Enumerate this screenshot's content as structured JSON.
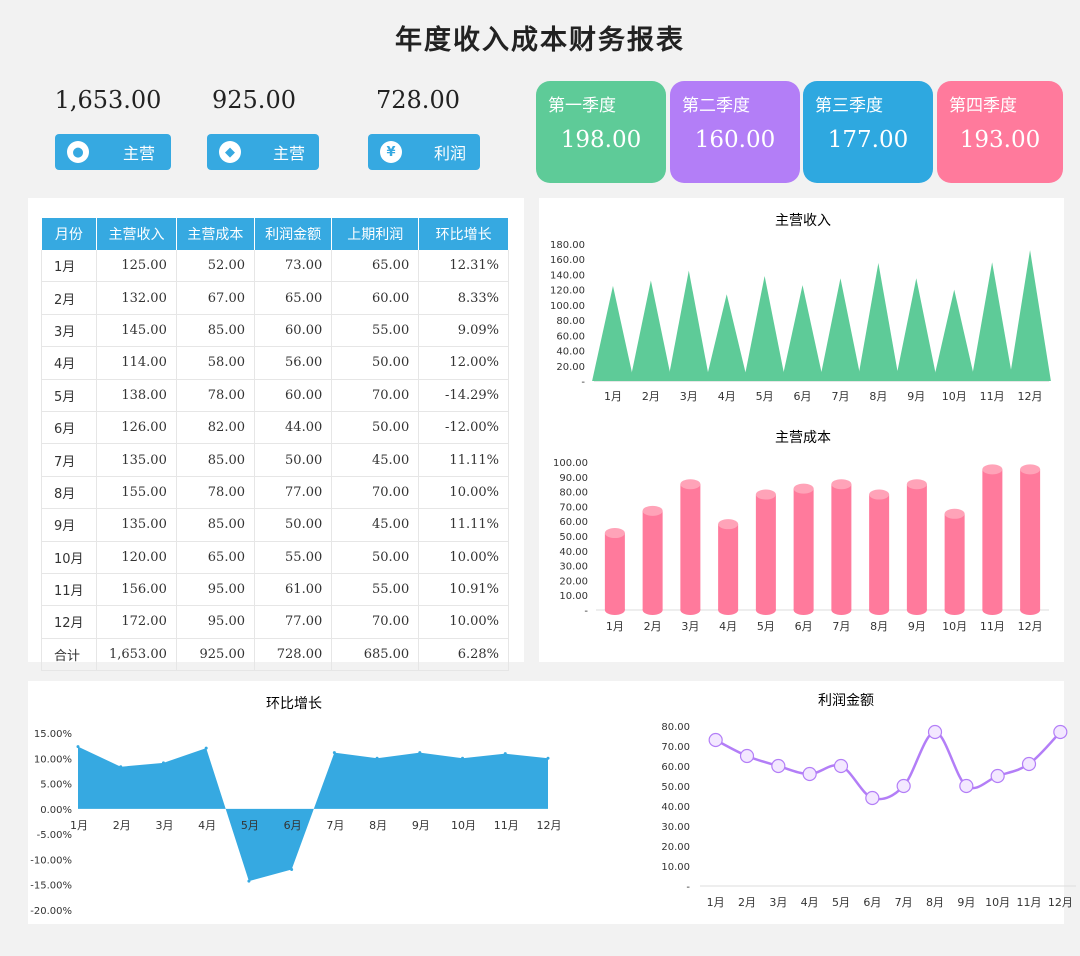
{
  "page_title": "年度收入成本财务报表",
  "kpis": [
    {
      "value": "1,653.00",
      "label": "主营",
      "icon": "piggy-bank-icon"
    },
    {
      "value": "925.00",
      "label": "主营",
      "icon": "tag-icon"
    },
    {
      "value": "728.00",
      "label": "利润",
      "icon": "coin-icon"
    }
  ],
  "quarters": [
    {
      "name": "第一季度",
      "value": "198.00",
      "color": "#5ecb98"
    },
    {
      "name": "第二季度",
      "value": "160.00",
      "color": "#b37ef7"
    },
    {
      "name": "第三季度",
      "value": "177.00",
      "color": "#2ea8e0"
    },
    {
      "name": "第四季度",
      "value": "193.00",
      "color": "#ff7a9c"
    }
  ],
  "table": {
    "headers": [
      "月份",
      "主营收入",
      "主营成本",
      "利润金额",
      "上期利润",
      "环比增长"
    ],
    "rows": [
      [
        "1月",
        "125.00",
        "52.00",
        "73.00",
        "65.00",
        "12.31%"
      ],
      [
        "2月",
        "132.00",
        "67.00",
        "65.00",
        "60.00",
        "8.33%"
      ],
      [
        "3月",
        "145.00",
        "85.00",
        "60.00",
        "55.00",
        "9.09%"
      ],
      [
        "4月",
        "114.00",
        "58.00",
        "56.00",
        "50.00",
        "12.00%"
      ],
      [
        "5月",
        "138.00",
        "78.00",
        "60.00",
        "70.00",
        "-14.29%"
      ],
      [
        "6月",
        "126.00",
        "82.00",
        "44.00",
        "50.00",
        "-12.00%"
      ],
      [
        "7月",
        "135.00",
        "85.00",
        "50.00",
        "45.00",
        "11.11%"
      ],
      [
        "8月",
        "155.00",
        "78.00",
        "77.00",
        "70.00",
        "10.00%"
      ],
      [
        "9月",
        "135.00",
        "85.00",
        "50.00",
        "45.00",
        "11.11%"
      ],
      [
        "10月",
        "120.00",
        "65.00",
        "55.00",
        "50.00",
        "10.00%"
      ],
      [
        "11月",
        "156.00",
        "95.00",
        "61.00",
        "55.00",
        "10.91%"
      ],
      [
        "12月",
        "172.00",
        "95.00",
        "77.00",
        "70.00",
        "10.00%"
      ]
    ],
    "total": [
      "合计",
      "1,653.00",
      "925.00",
      "728.00",
      "685.00",
      "6.28%"
    ]
  },
  "chart_data": [
    {
      "id": "revenue",
      "type": "bar",
      "title": "主营收入",
      "categories": [
        "1月",
        "2月",
        "3月",
        "4月",
        "5月",
        "6月",
        "7月",
        "8月",
        "9月",
        "10月",
        "11月",
        "12月"
      ],
      "values": [
        125,
        132,
        145,
        114,
        138,
        126,
        135,
        155,
        135,
        120,
        156,
        172
      ],
      "ylim": [
        0,
        180
      ],
      "yticks": [
        "-",
        "20.00",
        "40.00",
        "60.00",
        "80.00",
        "100.00",
        "120.00",
        "140.00",
        "160.00",
        "180.00"
      ],
      "color": "#5ecb98",
      "shape": "triangle",
      "grid": false
    },
    {
      "id": "cost",
      "type": "bar",
      "title": "主营成本",
      "categories": [
        "1月",
        "2月",
        "3月",
        "4月",
        "5月",
        "6月",
        "7月",
        "8月",
        "9月",
        "10月",
        "11月",
        "12月"
      ],
      "values": [
        52,
        67,
        85,
        58,
        78,
        82,
        85,
        78,
        85,
        65,
        95,
        95
      ],
      "ylim": [
        0,
        100
      ],
      "yticks": [
        "-",
        "10.00",
        "20.00",
        "30.00",
        "40.00",
        "50.00",
        "60.00",
        "70.00",
        "80.00",
        "90.00",
        "100.00"
      ],
      "color": "#ff7a9c",
      "shape": "cylinder",
      "grid": false
    },
    {
      "id": "growth",
      "type": "area",
      "title": "环比增长",
      "categories": [
        "1月",
        "2月",
        "3月",
        "4月",
        "5月",
        "6月",
        "7月",
        "8月",
        "9月",
        "10月",
        "11月",
        "12月"
      ],
      "values": [
        12.31,
        8.33,
        9.09,
        12.0,
        -14.29,
        -12.0,
        11.11,
        10.0,
        11.11,
        10.0,
        10.91,
        10.0
      ],
      "ylim": [
        -20,
        15
      ],
      "yticks": [
        "-20.00%",
        "-15.00%",
        "-10.00%",
        "-5.00%",
        "0.00%",
        "5.00%",
        "10.00%",
        "15.00%"
      ],
      "color": "#36a9e1",
      "grid": false
    },
    {
      "id": "profit",
      "type": "line",
      "title": "利润金额",
      "categories": [
        "1月",
        "2月",
        "3月",
        "4月",
        "5月",
        "6月",
        "7月",
        "8月",
        "9月",
        "10月",
        "11月",
        "12月"
      ],
      "values": [
        73,
        65,
        60,
        56,
        60,
        44,
        50,
        77,
        50,
        55,
        61,
        77
      ],
      "ylim": [
        0,
        80
      ],
      "yticks": [
        "-",
        "10.00",
        "20.00",
        "30.00",
        "40.00",
        "50.00",
        "60.00",
        "70.00",
        "80.00"
      ],
      "color": "#b37ef7",
      "grid": false
    }
  ]
}
